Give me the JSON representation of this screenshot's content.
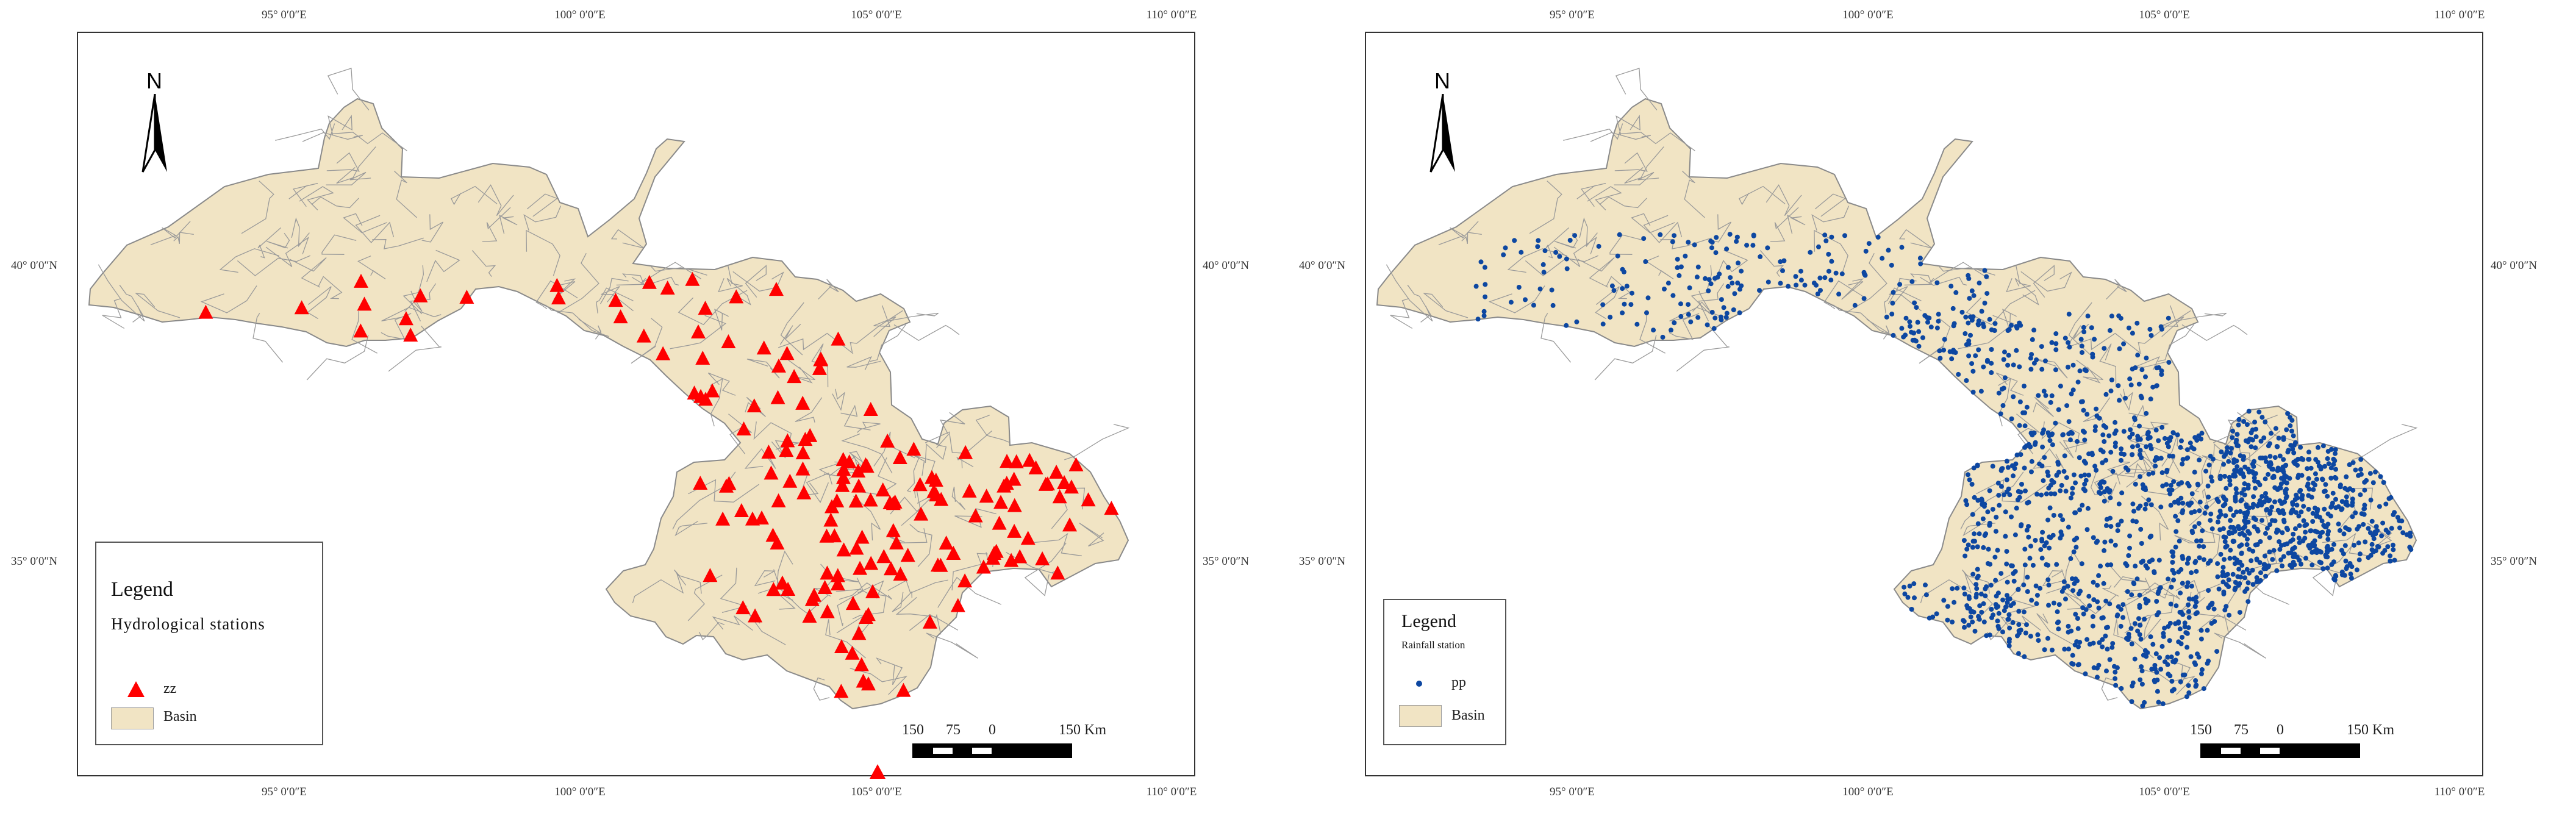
{
  "map_left": {
    "lon_labels": [
      "95° 0′0″E",
      "100° 0′0″E",
      "105° 0′0″E",
      "110° 0′0″E"
    ],
    "lat_labels": [
      "40° 0′0″N",
      "35° 0′0″N"
    ],
    "north_label": "N",
    "legend": {
      "title": "Legend",
      "subtitle": "Hydrological stations",
      "point_label": "zz",
      "polygon_label": "Basin"
    },
    "scale": {
      "labels": [
        "150",
        "75",
        "0",
        "150 Km"
      ]
    },
    "colors": {
      "basin": "#f1e4c4",
      "boundary": "#8a8a8a",
      "station": "#ff0000"
    },
    "icon": "red-triangle"
  },
  "map_right": {
    "lon_labels": [
      "95° 0′0″E",
      "100° 0′0″E",
      "105° 0′0″E",
      "110° 0′0″E"
    ],
    "lat_labels": [
      "40° 0′0″N",
      "35° 0′0″N"
    ],
    "north_label": "N",
    "legend": {
      "title": "Legend",
      "subtitle": "Rainfall station",
      "point_label": "pp",
      "polygon_label": "Basin"
    },
    "scale": {
      "labels": [
        "150",
        "75",
        "0",
        "150 Km"
      ]
    },
    "colors": {
      "basin": "#f1e4c4",
      "boundary": "#8a8a8a",
      "station": "#0d47a1"
    },
    "icon": "blue-dot"
  }
}
